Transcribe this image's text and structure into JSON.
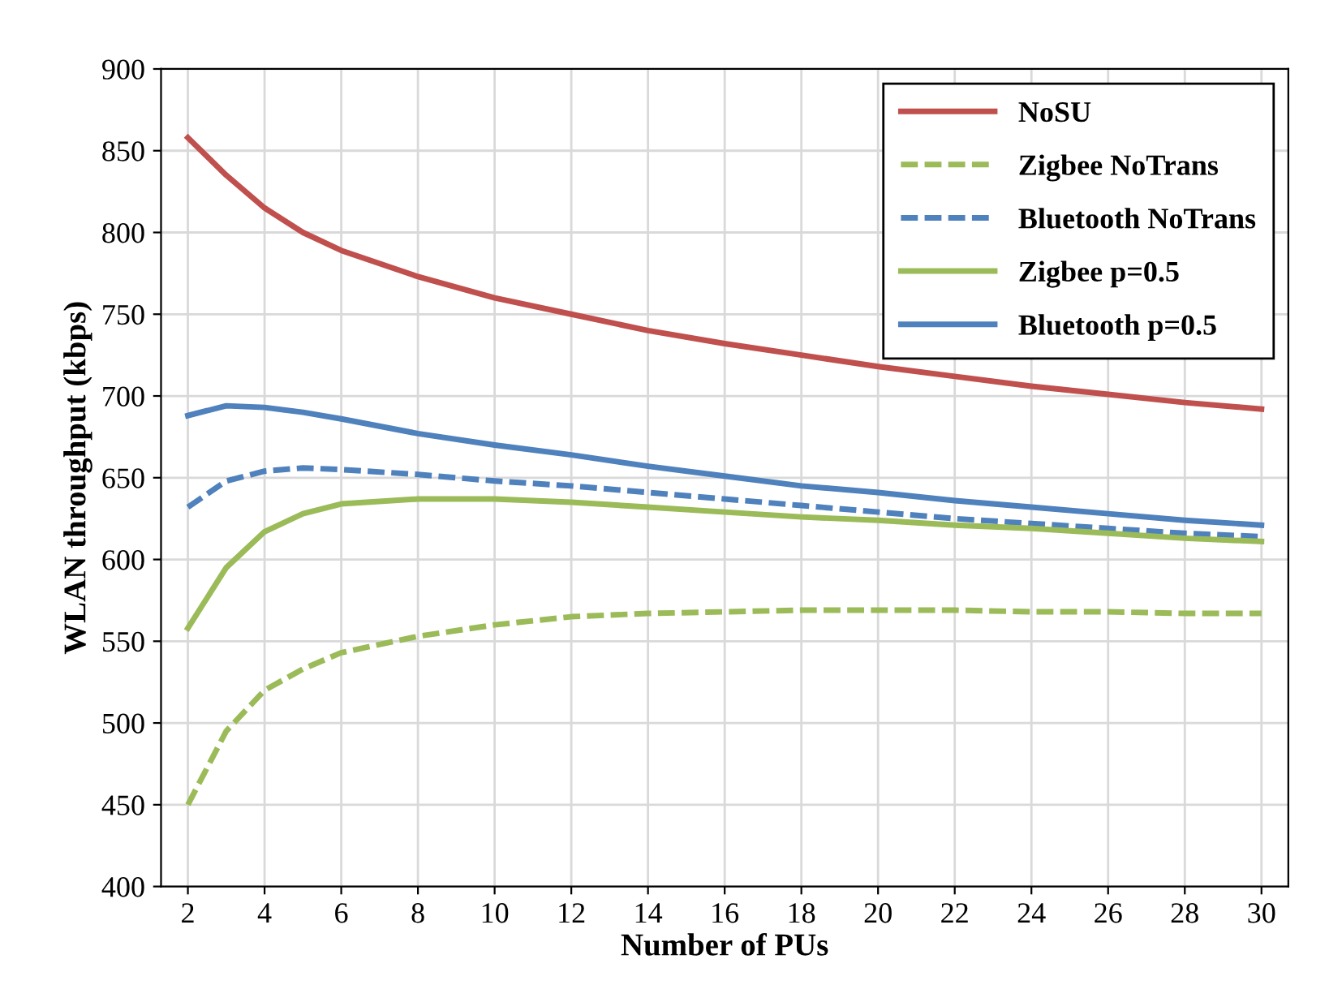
{
  "chart_data": {
    "type": "line",
    "xlabel": "Number of PUs",
    "ylabel": "WLAN throughput (kbps)",
    "x": [
      2,
      3,
      4,
      5,
      6,
      8,
      10,
      12,
      14,
      16,
      18,
      20,
      22,
      24,
      26,
      28,
      30
    ],
    "series": [
      {
        "name": "NoSU",
        "color": "#c0504d",
        "line_style": "solid",
        "values": [
          858,
          835,
          815,
          800,
          789,
          773,
          760,
          750,
          740,
          732,
          725,
          718,
          712,
          706,
          701,
          696,
          692
        ]
      },
      {
        "name": "Zigbee NoTrans",
        "color": "#9bbb59",
        "line_style": "dashed",
        "values": [
          450,
          495,
          520,
          533,
          543,
          553,
          560,
          565,
          567,
          568,
          569,
          569,
          569,
          568,
          568,
          567,
          567
        ]
      },
      {
        "name": "Bluetooth NoTrans",
        "color": "#4f81bd",
        "line_style": "dashed",
        "values": [
          632,
          648,
          654,
          656,
          655,
          652,
          648,
          645,
          641,
          637,
          633,
          629,
          625,
          622,
          619,
          616,
          614
        ]
      },
      {
        "name": "Zigbee p=0.5",
        "color": "#9bbb59",
        "line_style": "solid",
        "values": [
          558,
          595,
          617,
          628,
          634,
          637,
          637,
          635,
          632,
          629,
          626,
          624,
          621,
          619,
          616,
          613,
          611
        ]
      },
      {
        "name": "Bluetooth p=0.5",
        "color": "#4f81bd",
        "line_style": "solid",
        "values": [
          688,
          694,
          693,
          690,
          686,
          677,
          670,
          664,
          657,
          651,
          645,
          641,
          636,
          632,
          628,
          624,
          621
        ]
      }
    ],
    "xlim": [
      1.3,
      30.7
    ],
    "xticks": [
      2,
      4,
      6,
      8,
      10,
      12,
      14,
      16,
      18,
      20,
      22,
      24,
      26,
      28,
      30
    ],
    "ylim": [
      400,
      900
    ],
    "yticks": [
      400,
      450,
      500,
      550,
      600,
      650,
      700,
      750,
      800,
      850,
      900
    ],
    "grid": true,
    "legend": "top right",
    "marker": "none"
  }
}
